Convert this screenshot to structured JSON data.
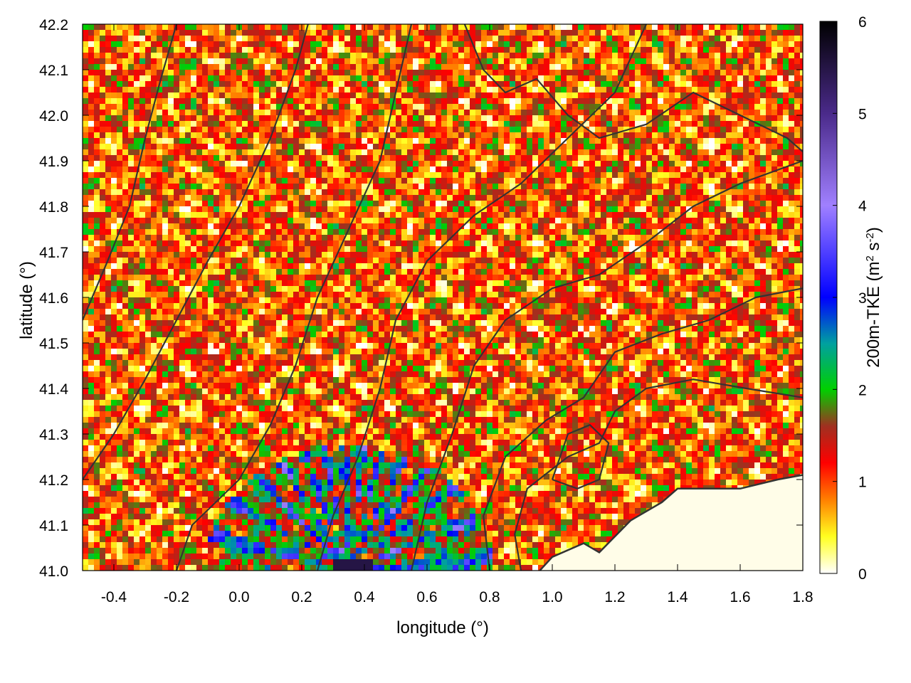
{
  "chart_data": {
    "type": "heatmap",
    "title": "",
    "xlabel": "longitude (°)",
    "ylabel": "latitude (°)",
    "xlim": [
      -0.5,
      1.8
    ],
    "ylim": [
      41.0,
      42.2
    ],
    "x_ticks": [
      "-0.4",
      "-0.2",
      "0.0",
      "0.2",
      "0.4",
      "0.6",
      "0.8",
      "1.0",
      "1.2",
      "1.4",
      "1.6",
      "1.8"
    ],
    "x_tick_values": [
      -0.4,
      -0.2,
      0.0,
      0.2,
      0.4,
      0.6,
      0.8,
      1.0,
      1.2,
      1.4,
      1.6,
      1.8
    ],
    "y_ticks": [
      "41.0",
      "41.1",
      "41.2",
      "41.3",
      "41.4",
      "41.5",
      "41.6",
      "41.7",
      "41.8",
      "41.9",
      "42.0",
      "42.1",
      "42.2"
    ],
    "y_tick_values": [
      41.0,
      41.1,
      41.2,
      41.3,
      41.4,
      41.5,
      41.6,
      41.7,
      41.8,
      41.9,
      42.0,
      42.1,
      42.2
    ],
    "colorbar": {
      "label_main": "200m-TKE (m",
      "label_sup1": "2",
      "label_mid": " s",
      "label_sup2": "-2",
      "label_end": ")",
      "range": [
        0,
        6
      ],
      "ticks": [
        "0",
        "1",
        "2",
        "3",
        "4",
        "5",
        "6"
      ],
      "tick_values": [
        0,
        1,
        2,
        3,
        4,
        5,
        6
      ],
      "stops": [
        {
          "value": 0.0,
          "color": "#ffffff"
        },
        {
          "value": 0.4,
          "color": "#ffff20"
        },
        {
          "value": 0.8,
          "color": "#ff8000"
        },
        {
          "value": 1.2,
          "color": "#ff0000"
        },
        {
          "value": 1.6,
          "color": "#a03020"
        },
        {
          "value": 2.0,
          "color": "#00d000"
        },
        {
          "value": 2.5,
          "color": "#00a0a0"
        },
        {
          "value": 3.0,
          "color": "#0000ff"
        },
        {
          "value": 4.0,
          "color": "#a080ff"
        },
        {
          "value": 5.0,
          "color": "#4a2a8a"
        },
        {
          "value": 6.0,
          "color": "#000000"
        }
      ]
    },
    "sea_boundary": [
      [
        0.96,
        41.0
      ],
      [
        1.0,
        41.03
      ],
      [
        1.1,
        41.06
      ],
      [
        1.15,
        41.04
      ],
      [
        1.25,
        41.11
      ],
      [
        1.35,
        41.15
      ],
      [
        1.4,
        41.18
      ],
      [
        1.6,
        41.18
      ],
      [
        1.72,
        41.2
      ],
      [
        1.8,
        41.21
      ]
    ],
    "contours": [
      [
        [
          0.9,
          41.0
        ],
        [
          0.88,
          41.08
        ],
        [
          0.92,
          41.18
        ],
        [
          1.05,
          41.25
        ],
        [
          1.15,
          41.28
        ],
        [
          1.2,
          41.35
        ],
        [
          1.3,
          41.4
        ],
        [
          1.45,
          41.42
        ],
        [
          1.62,
          41.4
        ],
        [
          1.8,
          41.38
        ]
      ],
      [
        [
          0.8,
          41.0
        ],
        [
          0.78,
          41.12
        ],
        [
          0.85,
          41.25
        ],
        [
          0.98,
          41.33
        ],
        [
          1.1,
          41.38
        ],
        [
          1.2,
          41.48
        ],
        [
          1.35,
          41.52
        ],
        [
          1.5,
          41.55
        ],
        [
          1.65,
          41.6
        ],
        [
          1.8,
          41.62
        ]
      ],
      [
        [
          0.55,
          41.0
        ],
        [
          0.6,
          41.15
        ],
        [
          0.68,
          41.3
        ],
        [
          0.75,
          41.45
        ],
        [
          0.85,
          41.55
        ],
        [
          1.0,
          41.62
        ],
        [
          1.15,
          41.65
        ],
        [
          1.3,
          41.72
        ],
        [
          1.45,
          41.8
        ],
        [
          1.6,
          41.85
        ],
        [
          1.8,
          41.9
        ]
      ],
      [
        [
          0.25,
          41.0
        ],
        [
          0.3,
          41.12
        ],
        [
          0.38,
          41.25
        ],
        [
          0.45,
          41.4
        ],
        [
          0.5,
          41.55
        ],
        [
          0.6,
          41.68
        ],
        [
          0.75,
          41.78
        ],
        [
          0.9,
          41.85
        ],
        [
          1.05,
          41.95
        ],
        [
          1.2,
          42.05
        ],
        [
          1.3,
          42.2
        ]
      ],
      [
        [
          -0.2,
          41.0
        ],
        [
          -0.15,
          41.1
        ],
        [
          0.0,
          41.2
        ],
        [
          0.1,
          41.32
        ],
        [
          0.18,
          41.45
        ],
        [
          0.25,
          41.6
        ],
        [
          0.35,
          41.75
        ],
        [
          0.45,
          41.9
        ],
        [
          0.5,
          42.05
        ],
        [
          0.55,
          42.2
        ]
      ],
      [
        [
          -0.5,
          41.2
        ],
        [
          -0.4,
          41.3
        ],
        [
          -0.3,
          41.42
        ],
        [
          -0.2,
          41.55
        ],
        [
          -0.1,
          41.68
        ],
        [
          0.0,
          41.8
        ],
        [
          0.1,
          41.95
        ],
        [
          0.18,
          42.1
        ],
        [
          0.22,
          42.2
        ]
      ],
      [
        [
          -0.5,
          41.55
        ],
        [
          -0.42,
          41.68
        ],
        [
          -0.35,
          41.8
        ],
        [
          -0.3,
          41.95
        ],
        [
          -0.25,
          42.08
        ],
        [
          -0.2,
          42.2
        ]
      ],
      [
        [
          0.72,
          42.2
        ],
        [
          0.78,
          42.1
        ],
        [
          0.85,
          42.05
        ],
        [
          0.95,
          42.08
        ],
        [
          1.05,
          42.0
        ],
        [
          1.15,
          41.95
        ],
        [
          1.3,
          41.98
        ],
        [
          1.45,
          42.05
        ],
        [
          1.6,
          42.0
        ],
        [
          1.75,
          41.95
        ],
        [
          1.8,
          41.92
        ]
      ],
      [
        [
          1.0,
          41.2
        ],
        [
          1.05,
          41.3
        ],
        [
          1.12,
          41.32
        ],
        [
          1.18,
          41.28
        ],
        [
          1.15,
          41.2
        ],
        [
          1.08,
          41.18
        ],
        [
          1.0,
          41.2
        ]
      ]
    ]
  }
}
